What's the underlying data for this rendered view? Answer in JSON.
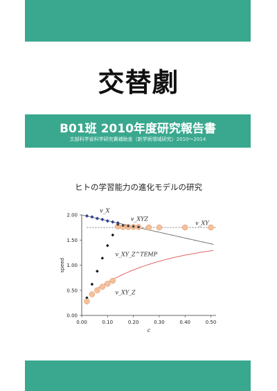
{
  "title": "交替劇",
  "band": {
    "title": "B01班 2010年度研究報告書",
    "subtitle": "文部科学省科学研究費補助金（新学術領域研究）2010～2014"
  },
  "subtitle": "ヒトの学習能力の進化モデルの研究",
  "colors": {
    "band": "#3aa88f",
    "orange": "#f5c09a",
    "blue": "#2b3f8f",
    "red": "#d9534f"
  },
  "chart_data": {
    "type": "scatter",
    "xlabel": "c",
    "ylabel": "speed",
    "xlim": [
      0,
      0.52
    ],
    "ylim": [
      0,
      2.0
    ],
    "xticks": [
      "0.00",
      "0.10",
      "0.20",
      "0.30",
      "0.40",
      "0.50"
    ],
    "yticks": [
      "0.00",
      "0.50",
      "1.00",
      "1.50",
      "2.00"
    ],
    "series": [
      {
        "name": "v_X",
        "values": [
          [
            0.02,
            1.98
          ],
          [
            0.04,
            1.96
          ],
          [
            0.06,
            1.93
          ],
          [
            0.08,
            1.91
          ],
          [
            0.1,
            1.88
          ],
          [
            0.12,
            1.86
          ],
          [
            0.14,
            1.84
          ]
        ]
      },
      {
        "name": "v_XYZ",
        "values": [
          [
            0.14,
            1.81
          ],
          [
            0.16,
            1.79
          ],
          [
            0.18,
            1.78
          ],
          [
            0.2,
            1.77
          ],
          [
            0.22,
            1.76
          ]
        ]
      },
      {
        "name": "v_XY",
        "values": [
          [
            0.14,
            1.77
          ],
          [
            0.16,
            1.76
          ],
          [
            0.18,
            1.76
          ],
          [
            0.2,
            1.76
          ],
          [
            0.22,
            1.76
          ],
          [
            0.26,
            1.75
          ],
          [
            0.3,
            1.75
          ],
          [
            0.4,
            1.75
          ],
          [
            0.5,
            1.75
          ]
        ]
      },
      {
        "name": "v_XY_Z^TEMP",
        "values": [
          [
            0.02,
            0.35
          ],
          [
            0.04,
            0.62
          ],
          [
            0.06,
            0.88
          ],
          [
            0.08,
            1.14
          ],
          [
            0.1,
            1.39
          ],
          [
            0.12,
            1.6
          ]
        ]
      },
      {
        "name": "v_XY_Z",
        "values": [
          [
            0.02,
            0.28
          ],
          [
            0.04,
            0.42
          ],
          [
            0.06,
            0.5
          ],
          [
            0.08,
            0.57
          ],
          [
            0.1,
            0.63
          ],
          [
            0.12,
            0.69
          ]
        ]
      }
    ],
    "labels": [
      "v_X",
      "v_XYZ",
      "v_XY",
      "v_XY_Z^TEMP",
      "v_XY_Z"
    ],
    "dashed_level": 1.75
  }
}
